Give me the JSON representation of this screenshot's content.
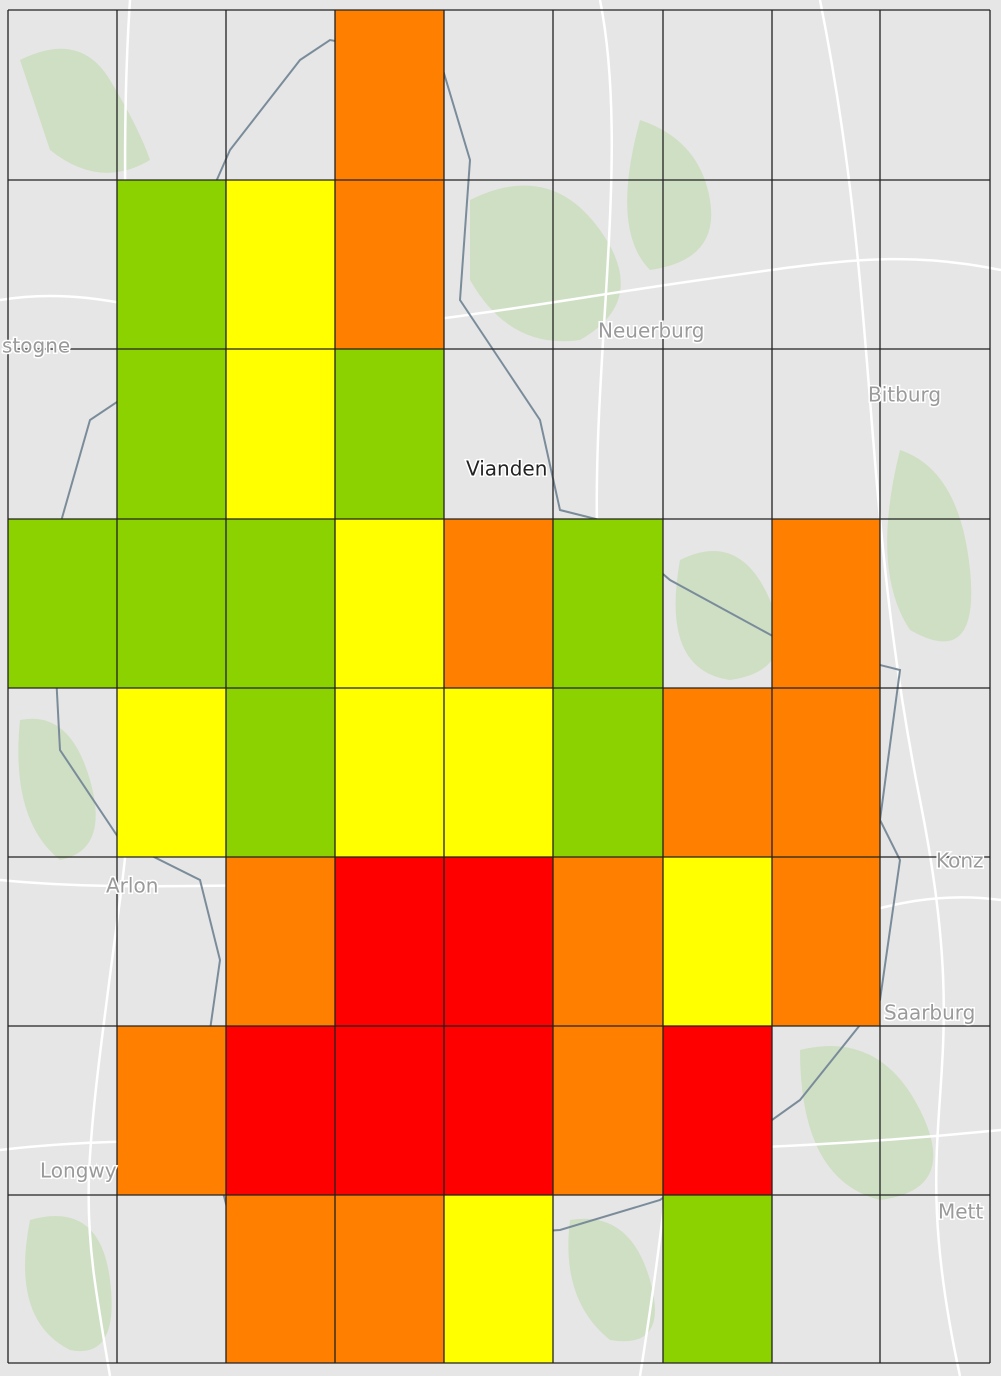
{
  "map": {
    "labels": [
      "stogne",
      "Neuerburg",
      "Bitburg",
      "Vianden",
      "Arlon",
      "Konz",
      "Saarburg",
      "Longwy",
      "Mett"
    ],
    "grid": {
      "rows": [
        [
          null,
          null,
          null,
          "#ff8000",
          null,
          null,
          null,
          null,
          null
        ],
        [
          null,
          "#8cd100",
          "#ffff00",
          "#ff8000",
          null,
          null,
          null,
          null,
          null
        ],
        [
          null,
          "#8cd100",
          "#ffff00",
          "#8cd100",
          null,
          null,
          null,
          null,
          null
        ],
        [
          "#8cd100",
          "#8cd100",
          "#8cd100",
          "#ffff00",
          "#ff8000",
          "#8cd100",
          null,
          "#ff8000",
          null
        ],
        [
          null,
          "#ffff00",
          "#8cd100",
          "#ffff00",
          "#ffff00",
          "#8cd100",
          "#ff8000",
          "#ff8000",
          null
        ],
        [
          null,
          null,
          "#ff8000",
          "#ff0000",
          "#ff0000",
          "#ff8000",
          "#ffff00",
          "#ff8000",
          null
        ],
        [
          null,
          "#ff8000",
          "#ff0000",
          "#ff0000",
          "#ff0000",
          "#ff8000",
          "#ff0000",
          null,
          null
        ],
        [
          null,
          null,
          "#ff8000",
          "#ff8000",
          "#ffff00",
          null,
          "#8cd100",
          null,
          null
        ]
      ]
    }
  }
}
